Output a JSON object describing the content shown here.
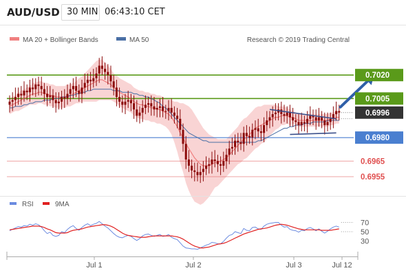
{
  "header": {
    "pair": "AUD/USD",
    "timeframe": "30 MIN",
    "time": "06:43:10 CET"
  },
  "legend": {
    "ma20": "MA 20 + Bollinger Bands",
    "ma50": "MA 50",
    "credit": "Research © 2019 Trading Central",
    "rsi": "RSI",
    "rsi_ma": "9MA"
  },
  "colors": {
    "candle": "#8b0a0a",
    "bollinger": "#f7c6c6",
    "ma20": "#f08080",
    "ma50": "#4a6fa5",
    "resistance": "#5a9a1a",
    "support": "#4a7fd0",
    "target": "#e05050",
    "current": "#333333",
    "arrow": "#2f5fa8",
    "rsi": "#6b8be0",
    "rsi_ma": "#e02020"
  },
  "chart_data": [
    {
      "type": "candlestick",
      "title": "AUD/USD 30 MIN",
      "ylim": [
        0.6944,
        0.7039
      ],
      "x_tick_labels": [
        "Jul 1",
        "Jul 2",
        "Jul 3",
        "Jul 12"
      ],
      "levels": [
        {
          "value": 0.702,
          "label": "0.7020",
          "kind": "resistance"
        },
        {
          "value": 0.7005,
          "label": "0.7005",
          "kind": "resistance"
        },
        {
          "value": 0.6996,
          "label": "0.6996",
          "kind": "current"
        },
        {
          "value": 0.698,
          "label": "0.6980",
          "kind": "support"
        },
        {
          "value": 0.6965,
          "label": "0.6965",
          "kind": "target"
        },
        {
          "value": 0.6955,
          "label": "0.6955",
          "kind": "target"
        }
      ],
      "close": [
        0.7003,
        0.7004,
        0.7006,
        0.7008,
        0.7007,
        0.701,
        0.7009,
        0.7012,
        0.7011,
        0.7014,
        0.7013,
        0.7011,
        0.7008,
        0.7006,
        0.7007,
        0.7004,
        0.7002,
        0.7003,
        0.7006,
        0.7005,
        0.7008,
        0.7011,
        0.7013,
        0.701,
        0.7008,
        0.7012,
        0.7015,
        0.7017,
        0.7016,
        0.7018,
        0.7021,
        0.7026,
        0.7024,
        0.7022,
        0.702,
        0.7016,
        0.7012,
        0.7006,
        0.7003,
        0.7001,
        0.7003,
        0.7004,
        0.7002,
        0.6998,
        0.6994,
        0.6996,
        0.6999,
        0.7001,
        0.7002,
        0.7,
        0.6998,
        0.6999,
        0.7,
        0.6997,
        0.6997,
        0.6999,
        0.6996,
        0.6994,
        0.6992,
        0.6985,
        0.6976,
        0.6966,
        0.6962,
        0.6959,
        0.6958,
        0.6956,
        0.6958,
        0.696,
        0.6962,
        0.6963,
        0.6966,
        0.6965,
        0.6963,
        0.6962,
        0.6965,
        0.6969,
        0.6973,
        0.6974,
        0.6978,
        0.6977,
        0.6976,
        0.6983,
        0.6981,
        0.698,
        0.6985,
        0.6986,
        0.6984,
        0.6983,
        0.6988,
        0.6991,
        0.6993,
        0.6995,
        0.6996,
        0.6998,
        0.6995,
        0.6994,
        0.6996,
        0.6993,
        0.6991,
        0.699,
        0.6988,
        0.699,
        0.6989,
        0.6992,
        0.6994,
        0.6993,
        0.6991,
        0.6993,
        0.6991,
        0.6988,
        0.699,
        0.6992,
        0.6995,
        0.6997,
        0.6996
      ],
      "ma20": [
        0.7,
        0.7001,
        0.7002,
        0.7003,
        0.7004,
        0.7005,
        0.7006,
        0.7007,
        0.7008,
        0.7008,
        0.7009,
        0.7009,
        0.7008,
        0.7008,
        0.7007,
        0.7007,
        0.7006,
        0.7006,
        0.7006,
        0.7006,
        0.7007,
        0.7007,
        0.7008,
        0.7009,
        0.701,
        0.7011,
        0.7012,
        0.7013,
        0.7014,
        0.7015,
        0.7016,
        0.7017,
        0.7017,
        0.7016,
        0.7015,
        0.7014,
        0.7012,
        0.7011,
        0.7009,
        0.7008,
        0.7007,
        0.7006,
        0.7005,
        0.7003,
        0.7002,
        0.7001,
        0.7001,
        0.7,
        0.7,
        0.6999,
        0.6999,
        0.6998,
        0.6998,
        0.6997,
        0.6996,
        0.6995,
        0.6993,
        0.699,
        0.6987,
        0.6983,
        0.698,
        0.6976,
        0.6973,
        0.697,
        0.6967,
        0.6965,
        0.6963,
        0.6962,
        0.6962,
        0.6962,
        0.6963,
        0.6964,
        0.6964,
        0.6965,
        0.6966,
        0.6967,
        0.6969,
        0.6971,
        0.6973,
        0.6975,
        0.6977,
        0.6979,
        0.698,
        0.6982,
        0.6984,
        0.6986,
        0.6987,
        0.6988,
        0.6989,
        0.699,
        0.6991,
        0.6992,
        0.6993,
        0.6993,
        0.6994,
        0.6994,
        0.6994,
        0.6993,
        0.6993,
        0.6992,
        0.6991,
        0.6991,
        0.6991,
        0.6991,
        0.6991,
        0.6991,
        0.6991,
        0.6991,
        0.6991,
        0.6991,
        0.6991,
        0.6992,
        0.6992,
        0.6993,
        0.6993
      ],
      "ma50": [
        0.6999,
        0.6999,
        0.7,
        0.7,
        0.7,
        0.7001,
        0.7001,
        0.7002,
        0.7002,
        0.7003,
        0.7003,
        0.7003,
        0.7004,
        0.7004,
        0.7004,
        0.7005,
        0.7005,
        0.7005,
        0.7006,
        0.7006,
        0.7006,
        0.7007,
        0.7007,
        0.7008,
        0.7008,
        0.7009,
        0.7009,
        0.701,
        0.701,
        0.7011,
        0.7011,
        0.7011,
        0.7011,
        0.7011,
        0.7011,
        0.7011,
        0.701,
        0.701,
        0.701,
        0.7009,
        0.7009,
        0.7009,
        0.7009,
        0.7008,
        0.7008,
        0.7007,
        0.7007,
        0.7006,
        0.7006,
        0.7005,
        0.7004,
        0.7003,
        0.7002,
        0.7,
        0.6999,
        0.6997,
        0.6995,
        0.6993,
        0.6991,
        0.6989,
        0.6987,
        0.6985,
        0.6983,
        0.6982,
        0.6981,
        0.698,
        0.6979,
        0.6978,
        0.6978,
        0.6977,
        0.6977,
        0.6977,
        0.6977,
        0.6977,
        0.6977,
        0.6977,
        0.6977,
        0.6977,
        0.6977,
        0.6977,
        0.6977,
        0.6977,
        0.6977,
        0.6977,
        0.6977,
        0.6977,
        0.6978,
        0.6978,
        0.6979,
        0.698,
        0.6981,
        0.6982,
        0.6983,
        0.6984,
        0.6985,
        0.6986,
        0.6986,
        0.6987,
        0.6987,
        0.6988,
        0.6988,
        0.6988,
        0.6989,
        0.6989,
        0.6989,
        0.699,
        0.699,
        0.699,
        0.699,
        0.699,
        0.6991,
        0.6991,
        0.6991,
        0.6991,
        0.6991
      ],
      "band_width": [
        0.0005,
        0.0005,
        0.0005,
        0.0006,
        0.0006,
        0.0006,
        0.0006,
        0.0006,
        0.0007,
        0.0007,
        0.0007,
        0.0007,
        0.0007,
        0.0007,
        0.0007,
        0.0007,
        0.0007,
        0.0007,
        0.0007,
        0.0007,
        0.0007,
        0.0007,
        0.0007,
        0.0007,
        0.0008,
        0.0008,
        0.0009,
        0.001,
        0.0011,
        0.0012,
        0.0013,
        0.0013,
        0.0013,
        0.0012,
        0.0011,
        0.001,
        0.0009,
        0.0009,
        0.0009,
        0.0009,
        0.0009,
        0.0009,
        0.0009,
        0.0009,
        0.0009,
        0.0009,
        0.0009,
        0.0009,
        0.0009,
        0.0009,
        0.0009,
        0.0009,
        0.0009,
        0.0009,
        0.0009,
        0.001,
        0.0011,
        0.0013,
        0.0016,
        0.0019,
        0.0022,
        0.0025,
        0.0027,
        0.0028,
        0.0028,
        0.0027,
        0.0026,
        0.0024,
        0.0022,
        0.002,
        0.0018,
        0.0016,
        0.0015,
        0.0014,
        0.0013,
        0.0012,
        0.0012,
        0.0012,
        0.0012,
        0.0012,
        0.0013,
        0.0013,
        0.0013,
        0.0013,
        0.0013,
        0.0013,
        0.0013,
        0.0012,
        0.0012,
        0.0011,
        0.001,
        0.0009,
        0.0008,
        0.0007,
        0.0006,
        0.0006,
        0.0005,
        0.0005,
        0.0004,
        0.0004,
        0.0004,
        0.0004,
        0.0004,
        0.0004,
        0.0004,
        0.0004,
        0.0004,
        0.0004,
        0.0004,
        0.0004,
        0.0004,
        0.0004,
        0.0004,
        0.0004,
        0.0004
      ],
      "trendlines": [
        {
          "from": [
            90,
            0.6998
          ],
          "to": [
            113,
            0.6992
          ]
        },
        {
          "from": [
            97,
            0.6982
          ],
          "to": [
            113,
            0.6983
          ]
        }
      ],
      "projection": {
        "from": [
          113,
          0.6996
        ],
        "to": [
          126,
          0.702
        ]
      }
    },
    {
      "type": "line",
      "title": "RSI",
      "ylim": [
        10,
        90
      ],
      "y_ticks": [
        70,
        50,
        30
      ],
      "series": [
        {
          "name": "RSI",
          "values": [
            52,
            55,
            58,
            61,
            60,
            63,
            62,
            66,
            64,
            67,
            65,
            60,
            52,
            46,
            49,
            42,
            40,
            42,
            50,
            48,
            55,
            60,
            63,
            57,
            53,
            59,
            64,
            67,
            63,
            66,
            68,
            72,
            67,
            62,
            58,
            52,
            46,
            41,
            38,
            37,
            40,
            42,
            40,
            35,
            31,
            35,
            41,
            44,
            45,
            42,
            40,
            42,
            44,
            40,
            41,
            44,
            38,
            35,
            33,
            26,
            19,
            15,
            14,
            13,
            13,
            12,
            15,
            18,
            21,
            23,
            27,
            26,
            24,
            24,
            29,
            36,
            42,
            44,
            50,
            48,
            46,
            57,
            53,
            52,
            59,
            60,
            56,
            55,
            62,
            66,
            68,
            69,
            70,
            70,
            64,
            60,
            61,
            55,
            53,
            52,
            49,
            53,
            52,
            57,
            59,
            56,
            52,
            56,
            51,
            47,
            51,
            56,
            60,
            62,
            60
          ]
        },
        {
          "name": "9MA",
          "values": [
            54,
            55,
            56,
            57,
            58,
            59,
            60,
            61,
            62,
            62,
            62,
            61,
            59,
            56,
            54,
            51,
            48,
            47,
            47,
            47,
            48,
            51,
            53,
            54,
            55,
            56,
            58,
            60,
            61,
            62,
            63,
            64,
            65,
            65,
            64,
            62,
            59,
            55,
            51,
            47,
            44,
            42,
            41,
            40,
            39,
            38,
            38,
            38,
            39,
            40,
            41,
            41,
            41,
            41,
            41,
            41,
            41,
            40,
            39,
            37,
            34,
            30,
            26,
            22,
            19,
            17,
            15,
            15,
            16,
            17,
            19,
            21,
            23,
            24,
            25,
            27,
            30,
            33,
            36,
            39,
            42,
            45,
            47,
            49,
            51,
            53,
            55,
            56,
            57,
            58,
            60,
            62,
            64,
            65,
            66,
            65,
            64,
            62,
            60,
            58,
            56,
            55,
            54,
            54,
            54,
            54,
            54,
            54,
            53,
            53,
            53,
            53,
            54,
            55,
            56
          ]
        }
      ]
    }
  ]
}
